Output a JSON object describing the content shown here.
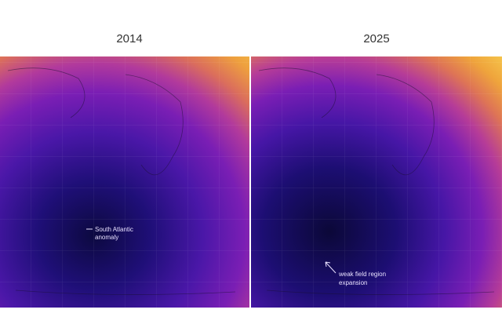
{
  "panels": [
    {
      "title": "2014",
      "annotation": {
        "lines": [
          "South Atlantic",
          "anomaly"
        ]
      }
    },
    {
      "title": "2025",
      "annotation": {
        "lines": [
          "weak field region",
          "expansion"
        ]
      }
    }
  ]
}
